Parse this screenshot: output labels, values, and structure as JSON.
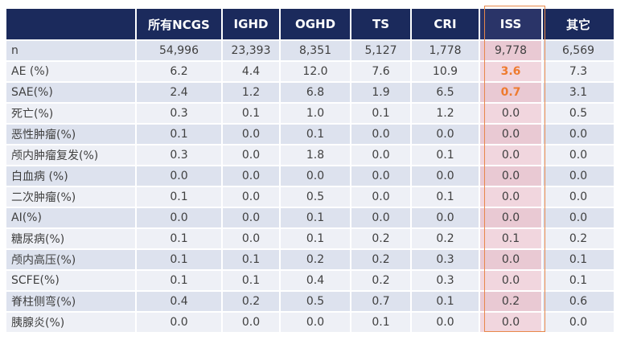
{
  "table": {
    "columns": [
      "",
      "所有NCGS",
      "IGHD",
      "OGHD",
      "TS",
      "CRI",
      "ISS",
      "其它"
    ],
    "rows": [
      {
        "label": "n",
        "values": [
          "54,996",
          "23,393",
          "8,351",
          "5,127",
          "1,778",
          "9,778",
          "6,569"
        ]
      },
      {
        "label": "AE (%)",
        "values": [
          "6.2",
          "4.4",
          "12.0",
          "7.6",
          "10.9",
          "3.6",
          "7.3"
        ]
      },
      {
        "label": "SAE(%)",
        "values": [
          "2.4",
          "1.2",
          "6.8",
          "1.9",
          "6.5",
          "0.7",
          "3.1"
        ]
      },
      {
        "label": "死亡(%)",
        "values": [
          "0.3",
          "0.1",
          "1.0",
          "0.1",
          "1.2",
          "0.0",
          "0.5"
        ]
      },
      {
        "label": "恶性肿瘤(%)",
        "values": [
          "0.1",
          "0.0",
          "0.1",
          "0.0",
          "0.0",
          "0.0",
          "0.0"
        ]
      },
      {
        "label": "颅内肿瘤复发(%)",
        "values": [
          "0.3",
          "0.0",
          "1.8",
          "0.0",
          "0.1",
          "0.0",
          "0.0"
        ]
      },
      {
        "label": "白血病 (%)",
        "values": [
          "0.0",
          "0.0",
          "0.0",
          "0.0",
          "0.0",
          "0.0",
          "0.0"
        ]
      },
      {
        "label": "二次肿瘤(%)",
        "values": [
          "0.1",
          "0.0",
          "0.5",
          "0.0",
          "0.1",
          "0.0",
          "0.0"
        ]
      },
      {
        "label": "AI(%)",
        "values": [
          "0.0",
          "0.0",
          "0.1",
          "0.0",
          "0.0",
          "0.0",
          "0.0"
        ]
      },
      {
        "label": "糖尿病(%)",
        "values": [
          "0.1",
          "0.0",
          "0.1",
          "0.2",
          "0.2",
          "0.1",
          "0.2"
        ]
      },
      {
        "label": "颅内高压(%)",
        "values": [
          "0.1",
          "0.1",
          "0.2",
          "0.2",
          "0.3",
          "0.0",
          "0.1"
        ]
      },
      {
        "label": "SCFE(%)",
        "values": [
          "0.1",
          "0.1",
          "0.4",
          "0.2",
          "0.3",
          "0.0",
          "0.1"
        ]
      },
      {
        "label": "脊柱侧弯(%)",
        "values": [
          "0.4",
          "0.2",
          "0.5",
          "0.7",
          "0.1",
          "0.2",
          "0.6"
        ]
      },
      {
        "label": "胰腺炎(%)",
        "values": [
          "0.0",
          "0.0",
          "0.0",
          "0.1",
          "0.0",
          "0.0",
          "0.0"
        ]
      }
    ],
    "highlight_column": "ISS",
    "highlighted_cells": [
      [
        "AE (%)",
        "ISS"
      ],
      [
        "SAE(%)",
        "ISS"
      ]
    ]
  },
  "colors": {
    "header_bg": "#1b2a5c",
    "row_odd": "#dde2ee",
    "row_even": "#eef0f6",
    "iss_tint": "#e9c9d3",
    "highlight_text": "#ee7b2f",
    "iss_border": "#e8874a"
  }
}
